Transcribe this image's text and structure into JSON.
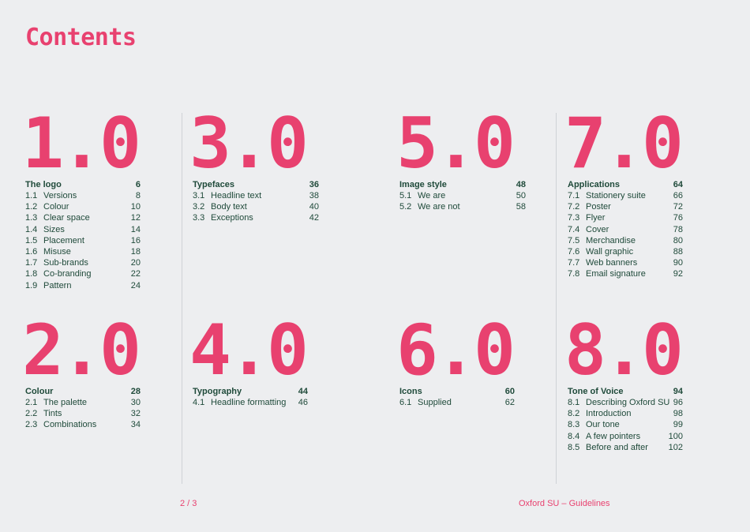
{
  "title": "Contents",
  "sections": [
    {
      "number": "1.0",
      "heading": "The logo",
      "page": "6",
      "items": [
        {
          "n": "1.1",
          "label": "Versions",
          "page": "8"
        },
        {
          "n": "1.2",
          "label": "Colour",
          "page": "10"
        },
        {
          "n": "1.3",
          "label": "Clear space",
          "page": "12"
        },
        {
          "n": "1.4",
          "label": "Sizes",
          "page": "14"
        },
        {
          "n": "1.5",
          "label": "Placement",
          "page": "16"
        },
        {
          "n": "1.6",
          "label": "Misuse",
          "page": "18"
        },
        {
          "n": "1.7",
          "label": "Sub-brands",
          "page": "20"
        },
        {
          "n": "1.8",
          "label": "Co-branding",
          "page": "22"
        },
        {
          "n": "1.9",
          "label": "Pattern",
          "page": "24"
        }
      ]
    },
    {
      "number": "2.0",
      "heading": "Colour",
      "page": "28",
      "items": [
        {
          "n": "2.1",
          "label": "The palette",
          "page": "30"
        },
        {
          "n": "2.2",
          "label": "Tints",
          "page": "32"
        },
        {
          "n": "2.3",
          "label": "Combinations",
          "page": "34"
        }
      ]
    },
    {
      "number": "3.0",
      "heading": "Typefaces",
      "page": "36",
      "items": [
        {
          "n": "3.1",
          "label": "Headline text",
          "page": "38"
        },
        {
          "n": "3.2",
          "label": "Body text",
          "page": "40"
        },
        {
          "n": "3.3",
          "label": "Exceptions",
          "page": "42"
        }
      ]
    },
    {
      "number": "4.0",
      "heading": "Typography",
      "page": "44",
      "items": [
        {
          "n": "4.1",
          "label": "Headline formatting",
          "page": "46"
        }
      ]
    },
    {
      "number": "5.0",
      "heading": "Image style",
      "page": "48",
      "items": [
        {
          "n": "5.1",
          "label": "We are",
          "page": "50"
        },
        {
          "n": "5.2",
          "label": "We are not",
          "page": "58"
        }
      ]
    },
    {
      "number": "6.0",
      "heading": "Icons",
      "page": "60",
      "items": [
        {
          "n": "6.1",
          "label": "Supplied",
          "page": "62"
        }
      ]
    },
    {
      "number": "7.0",
      "heading": "Applications",
      "page": "64",
      "items": [
        {
          "n": "7.1",
          "label": "Stationery suite",
          "page": "66"
        },
        {
          "n": "7.2",
          "label": "Poster",
          "page": "72"
        },
        {
          "n": "7.3",
          "label": "Flyer",
          "page": "76"
        },
        {
          "n": "7.4",
          "label": "Cover",
          "page": "78"
        },
        {
          "n": "7.5",
          "label": "Merchandise",
          "page": "80"
        },
        {
          "n": "7.6",
          "label": "Wall graphic",
          "page": "88"
        },
        {
          "n": "7.7",
          "label": "Web banners",
          "page": "90"
        },
        {
          "n": "7.8",
          "label": "Email signature",
          "page": "92"
        }
      ]
    },
    {
      "number": "8.0",
      "heading": "Tone of Voice",
      "page": "94",
      "items": [
        {
          "n": "8.1",
          "label": "Describing Oxford SU",
          "page": "96"
        },
        {
          "n": "8.2",
          "label": "Introduction",
          "page": "98"
        },
        {
          "n": "8.3",
          "label": "Our tone",
          "page": "99"
        },
        {
          "n": "8.4",
          "label": "A few pointers",
          "page": "100"
        },
        {
          "n": "8.5",
          "label": "Before and after",
          "page": "102"
        }
      ]
    }
  ],
  "footer": {
    "page_indicator": "2 / 3",
    "document_name": "Oxford SU – Guidelines"
  }
}
